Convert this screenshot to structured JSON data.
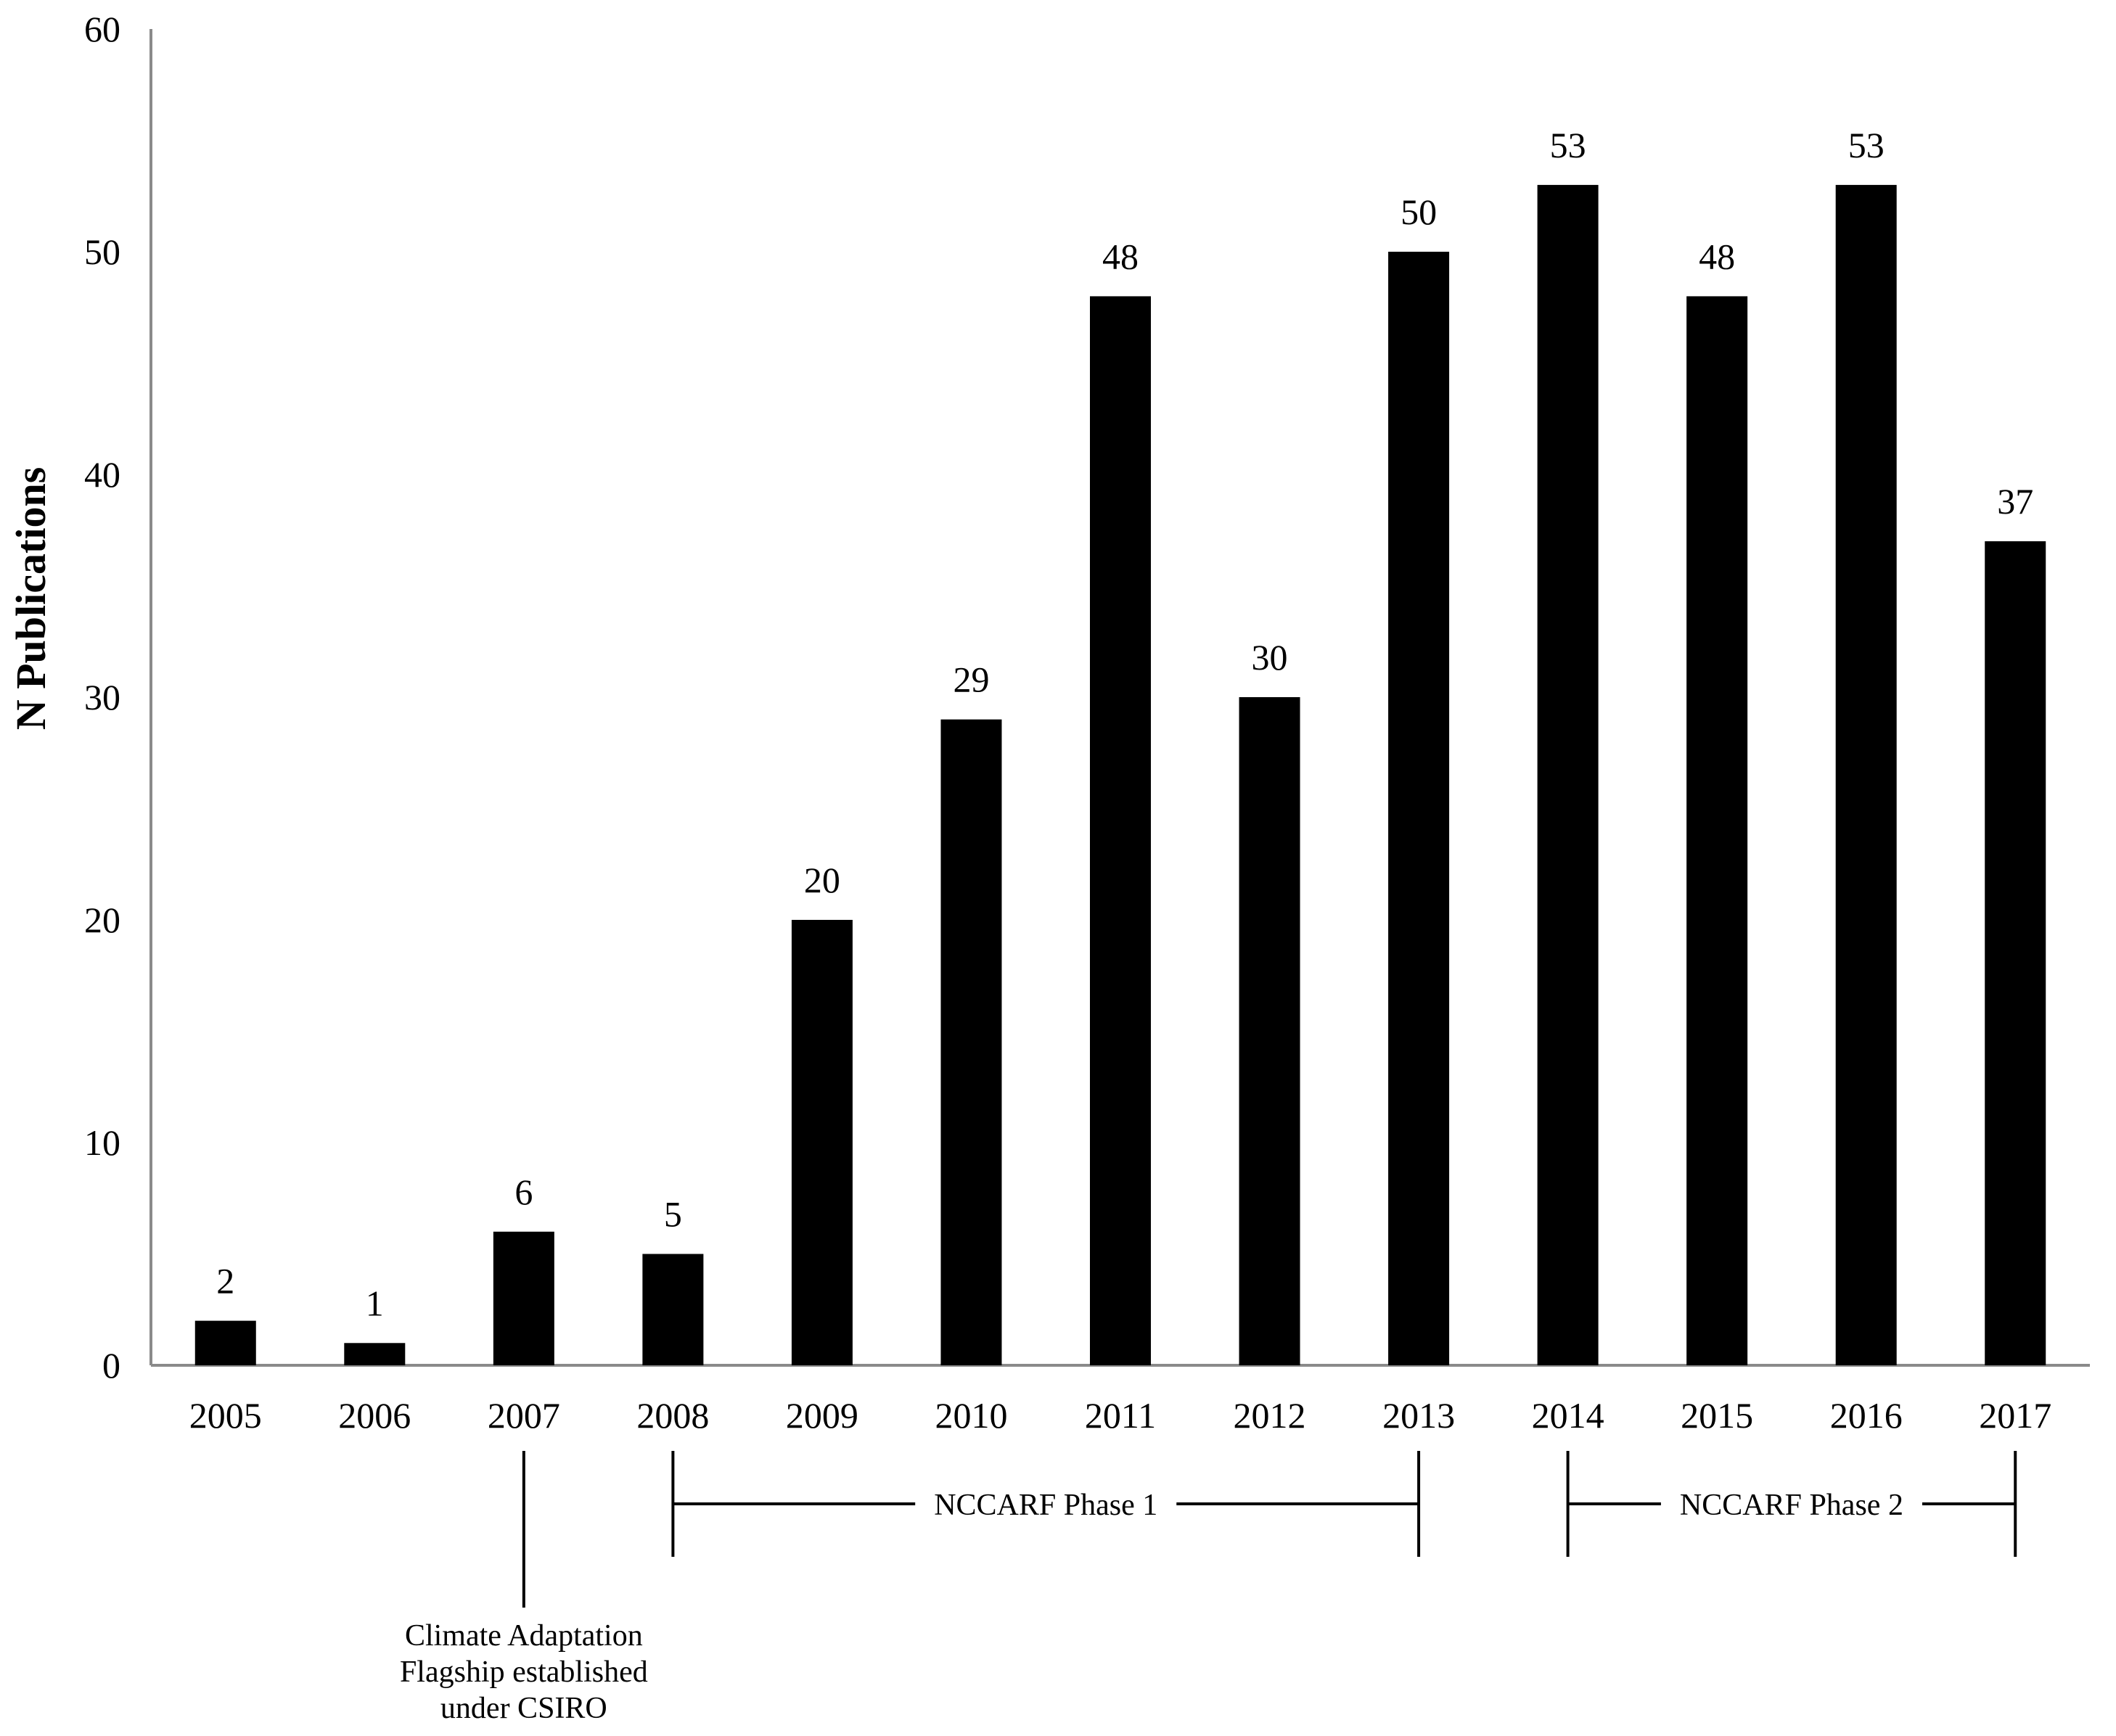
{
  "chart_data": {
    "type": "bar",
    "title": "",
    "xlabel": "",
    "ylabel": "N Publications",
    "categories": [
      "2005",
      "2006",
      "2007",
      "2008",
      "2009",
      "2010",
      "2011",
      "2012",
      "2013",
      "2014",
      "2015",
      "2016",
      "2017"
    ],
    "values": [
      2,
      1,
      6,
      5,
      20,
      29,
      48,
      30,
      50,
      53,
      48,
      53,
      37
    ],
    "ylim": [
      0,
      60
    ],
    "yticks": [
      0,
      10,
      20,
      30,
      40,
      50,
      60
    ],
    "grid": false,
    "legend": "none",
    "bar_color": "#000000",
    "data_labels": true,
    "annotations": [
      {
        "type": "marker",
        "year": "2007",
        "lines": [
          "Climate Adaptation",
          "Flagship established",
          "under CSIRO"
        ]
      },
      {
        "type": "range",
        "start": "2008",
        "end": "2013",
        "label": "NCCARF Phase 1"
      },
      {
        "type": "range",
        "start": "2014",
        "end": "2017",
        "label": "NCCARF Phase 2"
      }
    ]
  }
}
